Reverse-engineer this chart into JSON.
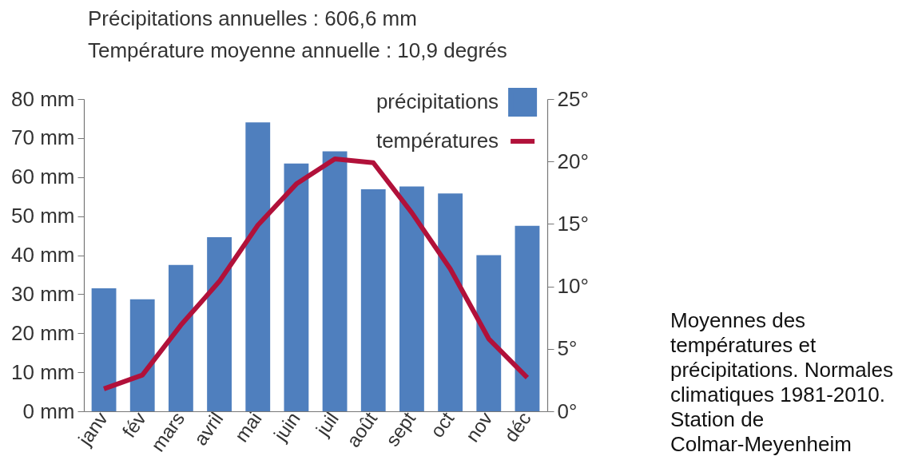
{
  "chart_data": {
    "type": "bar",
    "title": "Précipitations annuelles : 606,6 mm",
    "subtitle": "Température moyenne annuelle : 10,9 degrés",
    "categories": [
      "janv",
      "fév",
      "mars",
      "avril",
      "mai",
      "juin",
      "juil",
      "août",
      "sept",
      "oct",
      "nov",
      "déc"
    ],
    "series": [
      {
        "name": "précipitations",
        "color": "#4f7fbe",
        "values": [
          31.5,
          28.7,
          37.5,
          44.6,
          74.0,
          63.5,
          66.6,
          56.9,
          57.6,
          55.8,
          40.0,
          47.5
        ]
      },
      {
        "name": "températures",
        "type": "line",
        "axis": "y2",
        "color": "#b1113a",
        "values": [
          1.8,
          2.9,
          6.9,
          10.4,
          14.9,
          18.2,
          20.2,
          19.9,
          15.9,
          11.4,
          5.8,
          2.7
        ]
      }
    ],
    "ylim": [
      0,
      80
    ],
    "yticks": [
      {
        "value": 0,
        "label": "0 mm"
      },
      {
        "value": 10,
        "label": "10 mm"
      },
      {
        "value": 20,
        "label": "20 mm"
      },
      {
        "value": 30,
        "label": "30 mm"
      },
      {
        "value": 40,
        "label": "40 mm"
      },
      {
        "value": 50,
        "label": "50 mm"
      },
      {
        "value": 60,
        "label": "60 mm"
      },
      {
        "value": 70,
        "label": "70 mm"
      },
      {
        "value": 80,
        "label": "80 mm"
      }
    ],
    "y2lim": [
      0,
      25
    ],
    "y2ticks": [
      {
        "value": 0,
        "label": "0°"
      },
      {
        "value": 5,
        "label": "5°"
      },
      {
        "value": 10,
        "label": "10°"
      },
      {
        "value": 15,
        "label": "15°"
      },
      {
        "value": 20,
        "label": "20°"
      },
      {
        "value": 25,
        "label": "25°"
      }
    ],
    "grid": false,
    "legend": "top right",
    "annotations": [
      "Moyennes des températures et précipitations. Normales climatiques 1981-2010. Station de Colmar-Meyenheim"
    ]
  }
}
